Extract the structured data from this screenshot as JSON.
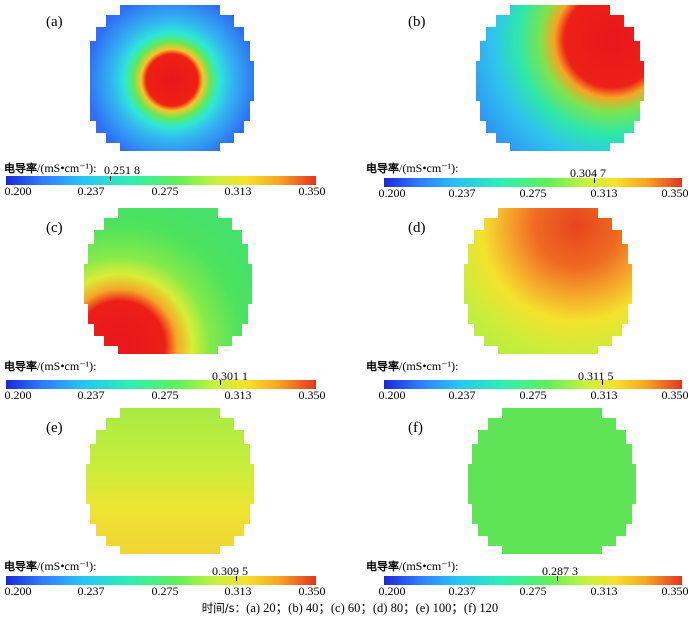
{
  "colorbar": {
    "title_zh": "电导率",
    "title_unit": "/(mS•cm⁻¹):",
    "ticks": [
      "0.200",
      "0.237",
      "0.275",
      "0.313",
      "0.350"
    ],
    "min": 0.2,
    "max": 0.35
  },
  "panels": [
    {
      "label": "(a)",
      "value": "0.251 8",
      "value_num": 0.2518
    },
    {
      "label": "(b)",
      "value": "0.304 7",
      "value_num": 0.3047
    },
    {
      "label": "(c)",
      "value": "0.301 1",
      "value_num": 0.3011
    },
    {
      "label": "(d)",
      "value": "0.311 5",
      "value_num": 0.3115
    },
    {
      "label": "(e)",
      "value": "0.309 5",
      "value_num": 0.3095
    },
    {
      "label": "(f)",
      "value": "0.287 3",
      "value_num": 0.2873
    }
  ],
  "caption": {
    "zh": "时间/s：",
    "text": "(a) 20；(b) 40；(c) 60；(d) 80；(e) 100；(f) 120"
  }
}
